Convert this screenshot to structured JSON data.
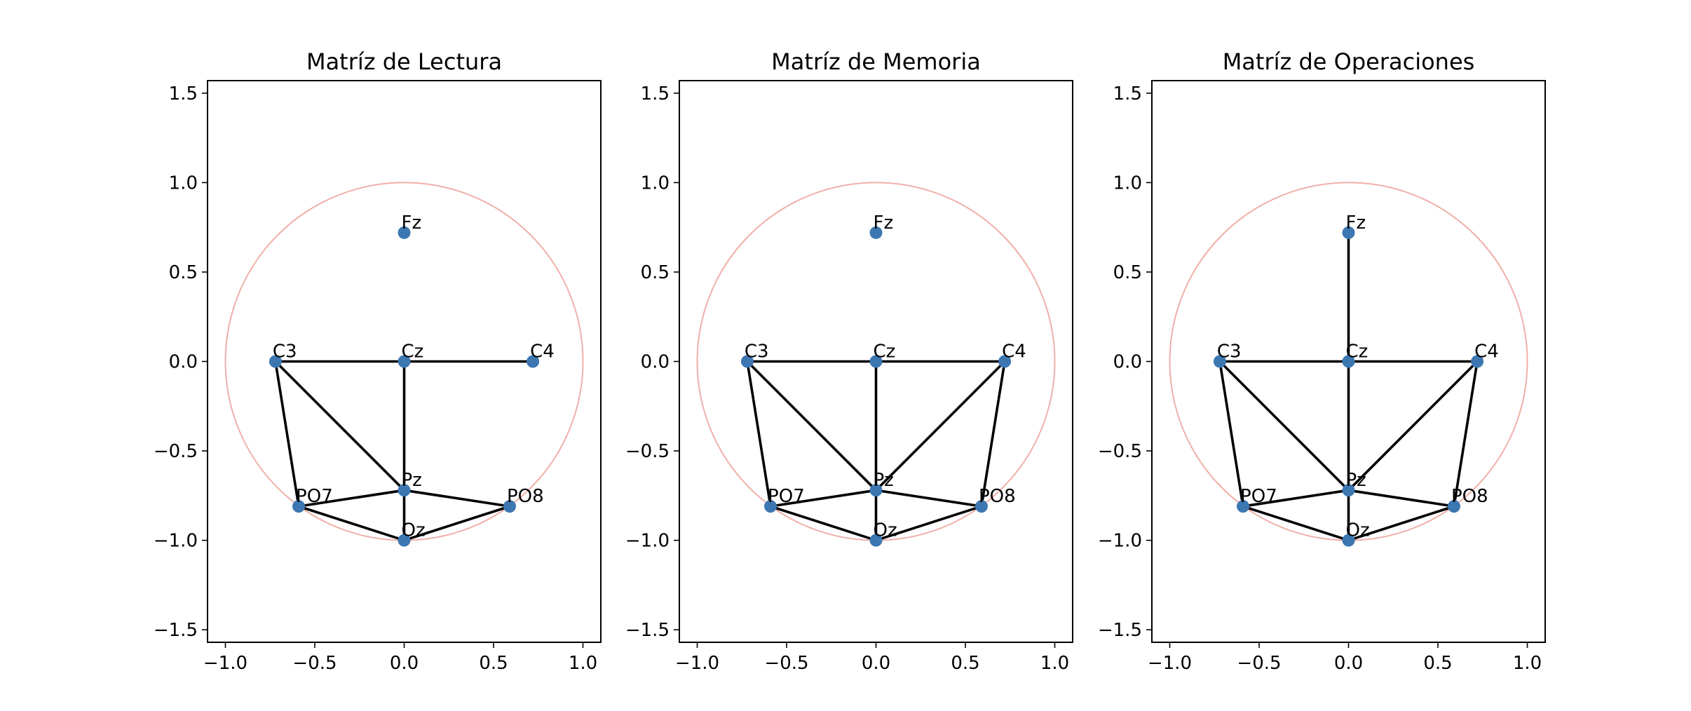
{
  "chart_data": {
    "type": "scatter",
    "colors": {
      "node": "#3d77b2",
      "edge": "#000000",
      "head_circle": "#f0b0aa"
    },
    "xlim": [
      -1.1,
      1.1
    ],
    "ylim": [
      -1.57,
      1.57
    ],
    "xticks": [
      -1.0,
      -0.5,
      0.0,
      0.5,
      1.0
    ],
    "xtick_labels": [
      "−1.0",
      "−0.5",
      "0.0",
      "0.5",
      "1.0"
    ],
    "yticks": [
      1.5,
      1.0,
      0.5,
      0.0,
      -0.5,
      -1.0,
      -1.5
    ],
    "ytick_labels": [
      "1.5",
      "1.0",
      "0.5",
      "0.0",
      "−0.5",
      "−1.0",
      "−1.5"
    ],
    "head_circle_radius": 1.0,
    "nodes": [
      {
        "name": "Fz",
        "x": 0.0,
        "y": 0.72
      },
      {
        "name": "C3",
        "x": -0.72,
        "y": 0.0
      },
      {
        "name": "Cz",
        "x": 0.0,
        "y": 0.0
      },
      {
        "name": "C4",
        "x": 0.72,
        "y": 0.0
      },
      {
        "name": "Pz",
        "x": 0.0,
        "y": -0.72
      },
      {
        "name": "PO7",
        "x": -0.59,
        "y": -0.81
      },
      {
        "name": "PO8",
        "x": 0.59,
        "y": -0.81
      },
      {
        "name": "Oz",
        "x": 0.0,
        "y": -1.0
      }
    ],
    "panels": [
      {
        "title": "Matríz de Lectura",
        "edges": [
          [
            "C3",
            "Cz"
          ],
          [
            "Cz",
            "C4"
          ],
          [
            "C3",
            "PO7"
          ],
          [
            "C3",
            "Pz"
          ],
          [
            "Cz",
            "Pz"
          ],
          [
            "PO7",
            "Pz"
          ],
          [
            "Pz",
            "PO8"
          ],
          [
            "PO7",
            "Oz"
          ],
          [
            "Pz",
            "Oz"
          ],
          [
            "Oz",
            "PO8"
          ]
        ]
      },
      {
        "title": "Matríz de Memoria",
        "edges": [
          [
            "C3",
            "Cz"
          ],
          [
            "Cz",
            "C4"
          ],
          [
            "C3",
            "PO7"
          ],
          [
            "C3",
            "Pz"
          ],
          [
            "Cz",
            "Pz"
          ],
          [
            "C4",
            "Pz"
          ],
          [
            "C4",
            "PO8"
          ],
          [
            "PO7",
            "Pz"
          ],
          [
            "Pz",
            "PO8"
          ],
          [
            "PO7",
            "Oz"
          ],
          [
            "Pz",
            "Oz"
          ],
          [
            "Oz",
            "PO8"
          ]
        ]
      },
      {
        "title": "Matríz de Operaciones",
        "edges": [
          [
            "Fz",
            "Cz"
          ],
          [
            "C3",
            "Cz"
          ],
          [
            "Cz",
            "C4"
          ],
          [
            "C3",
            "PO7"
          ],
          [
            "C3",
            "Pz"
          ],
          [
            "Cz",
            "Pz"
          ],
          [
            "C4",
            "Pz"
          ],
          [
            "C4",
            "PO8"
          ],
          [
            "PO7",
            "Pz"
          ],
          [
            "Pz",
            "PO8"
          ],
          [
            "PO7",
            "Oz"
          ],
          [
            "Pz",
            "Oz"
          ],
          [
            "Oz",
            "PO8"
          ]
        ]
      }
    ]
  }
}
